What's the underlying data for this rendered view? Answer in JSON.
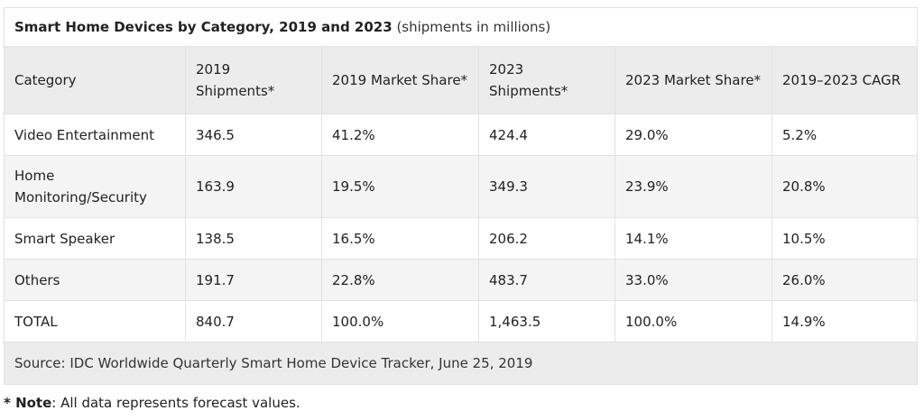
{
  "caption": {
    "title": "Smart Home Devices by Category, 2019 and 2023",
    "subtitle": "(shipments in millions)"
  },
  "columns": [
    "Category",
    "2019 Shipments*",
    "2019 Market Share*",
    "2023 Shipments*",
    "2023 Market Share*",
    "2019–2023 CAGR"
  ],
  "rows": [
    [
      "Video Entertainment",
      "346.5",
      "41.2%",
      "424.4",
      "29.0%",
      "5.2%"
    ],
    [
      "Home Monitoring/Security",
      "163.9",
      "19.5%",
      "349.3",
      "23.9%",
      "20.8%"
    ],
    [
      "Smart Speaker",
      "138.5",
      "16.5%",
      "206.2",
      "14.1%",
      "10.5%"
    ],
    [
      "Others",
      "191.7",
      "22.8%",
      "483.7",
      "33.0%",
      "26.0%"
    ]
  ],
  "total": [
    "TOTAL",
    "840.7",
    "100.0%",
    "1,463.5",
    "100.0%",
    "14.9%"
  ],
  "source": "Source: IDC Worldwide Quarterly Smart Home Device Tracker, June 25, 2019",
  "note": {
    "label": "* Note",
    "text": ": All data represents forecast values."
  }
}
